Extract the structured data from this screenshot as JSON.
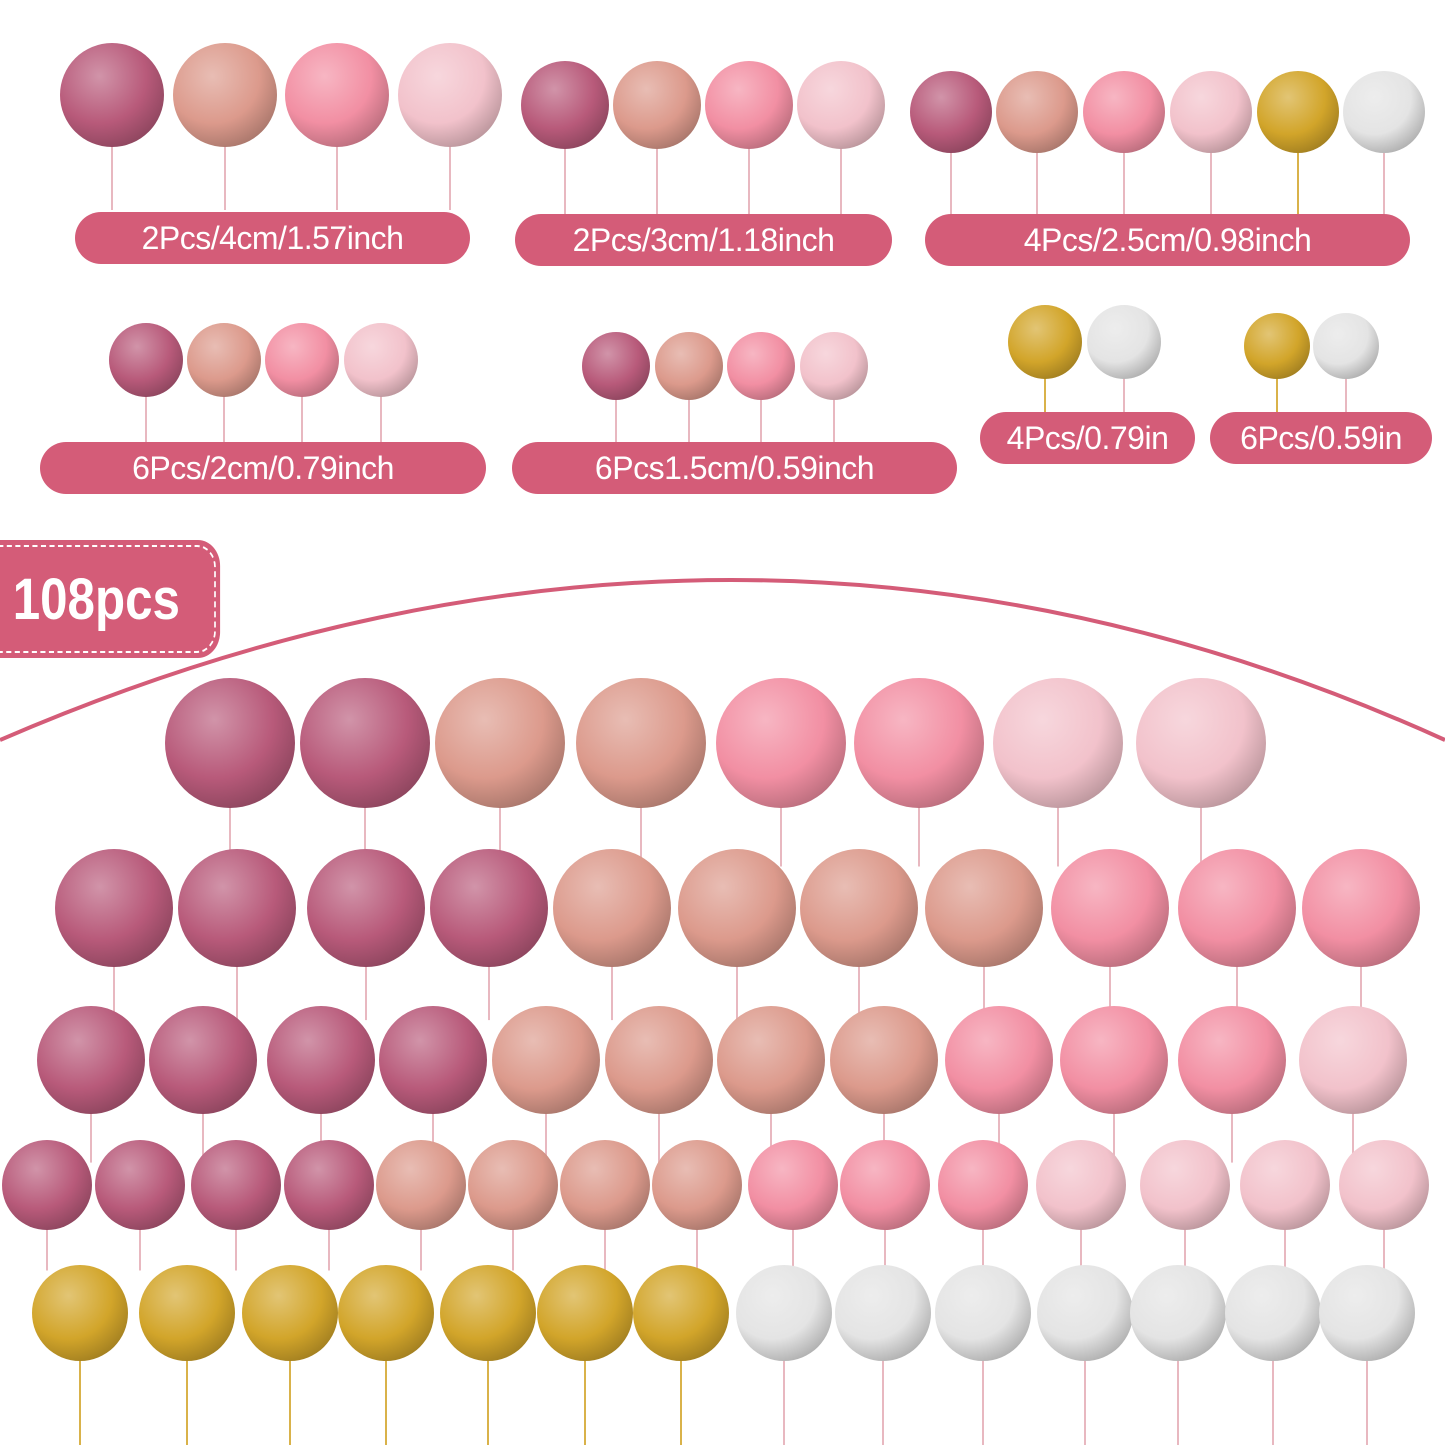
{
  "colors": {
    "glitter_pink": "#b85a7a",
    "pearl_rose": "#dc9a8c",
    "pink": "#f28fa3",
    "light_pink": "#f2c2cb",
    "gold": "#d2a52a",
    "silver": "#e4e4e4",
    "accent": "#d45c78"
  },
  "groups": [
    {
      "label": "2Pcs/4cm/1.57inch",
      "balls": [
        "glitter_pink",
        "pearl_rose",
        "pink",
        "light_pink"
      ]
    },
    {
      "label": "2Pcs/3cm/1.18inch",
      "balls": [
        "glitter_pink",
        "pearl_rose",
        "pink",
        "light_pink"
      ]
    },
    {
      "label": "4Pcs/2.5cm/0.98inch",
      "balls": [
        "glitter_pink",
        "pearl_rose",
        "pink",
        "light_pink",
        "gold",
        "silver"
      ]
    },
    {
      "label": "6Pcs/2cm/0.79inch",
      "balls": [
        "glitter_pink",
        "pearl_rose",
        "pink",
        "light_pink"
      ]
    },
    {
      "label": "6Pcs1.5cm/0.59inch",
      "balls": [
        "glitter_pink",
        "pearl_rose",
        "pink",
        "light_pink"
      ]
    },
    {
      "label": "4Pcs/0.79in",
      "balls": [
        "gold",
        "silver"
      ]
    },
    {
      "label": "6Pcs/0.59in",
      "balls": [
        "gold",
        "silver"
      ]
    }
  ],
  "badge": {
    "label": "108pcs"
  },
  "rows": [
    [
      "glitter_pink",
      "glitter_pink",
      "pearl_rose",
      "pearl_rose",
      "pink",
      "pink",
      "light_pink",
      "light_pink"
    ],
    [
      "glitter_pink",
      "glitter_pink",
      "glitter_pink",
      "glitter_pink",
      "pearl_rose",
      "pearl_rose",
      "pearl_rose",
      "pearl_rose",
      "pink",
      "pink",
      "pink"
    ],
    [
      "glitter_pink",
      "glitter_pink",
      "glitter_pink",
      "glitter_pink",
      "pearl_rose",
      "pearl_rose",
      "pearl_rose",
      "pearl_rose",
      "pink",
      "pink",
      "pink",
      "light_pink"
    ],
    [
      "glitter_pink",
      "glitter_pink",
      "glitter_pink",
      "glitter_pink",
      "pearl_rose",
      "pearl_rose",
      "pearl_rose",
      "pearl_rose",
      "pink",
      "pink",
      "pink",
      "light_pink",
      "light_pink",
      "light_pink",
      "light_pink"
    ],
    [
      "gold",
      "gold",
      "gold",
      "gold",
      "gold",
      "gold",
      "gold",
      "silver",
      "silver",
      "silver",
      "silver",
      "silver",
      "silver",
      "silver"
    ]
  ]
}
